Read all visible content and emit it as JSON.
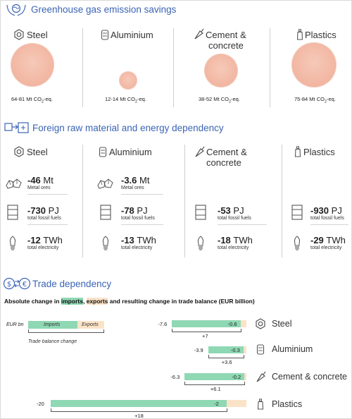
{
  "sections": {
    "ghg_title": "Greenhouse gas emission savings",
    "dependency_title": "Foreign raw material and energy dependency",
    "trade_title": "Trade dependency"
  },
  "materials": [
    "Steel",
    "Aluminium",
    "Cement & concrete",
    "Plastics"
  ],
  "materials_split": {
    "cement_line1": "Cement &",
    "cement_line2": "concrete"
  },
  "ghg": {
    "steel": {
      "range": "64-81",
      "value_max": 81
    },
    "aluminium": {
      "range": "12-14",
      "value_max": 14
    },
    "cement": {
      "range": "38-52",
      "value_max": 52
    },
    "plastics": {
      "range": "75-84",
      "value_max": 84
    },
    "unit_prefix": "Mt CO",
    "unit_sub": "2",
    "unit_suffix": "-eq."
  },
  "dependency": {
    "steel": {
      "ores_value": "-46",
      "ores_unit": "Mt",
      "ores_label": "Metal ores",
      "fossil_value": "-730",
      "fossil_unit": "PJ",
      "fossil_label": "total fossil fuels",
      "elec_value": "-12",
      "elec_unit": "TWh",
      "elec_label": "total electricity"
    },
    "aluminium": {
      "ores_value": "-3.6",
      "ores_unit": "Mt",
      "ores_label": "Metal ores",
      "fossil_value": "-78",
      "fossil_unit": "PJ",
      "fossil_label": "total fossil fuels",
      "elec_value": "-13",
      "elec_unit": "TWh",
      "elec_label": "total electricity"
    },
    "cement": {
      "fossil_value": "-53",
      "fossil_unit": "PJ",
      "fossil_label": "total fossil fuels",
      "elec_value": "-18",
      "elec_unit": "TWh",
      "elec_label": "total electricity"
    },
    "plastics": {
      "fossil_value": "-930",
      "fossil_unit": "PJ",
      "fossil_label": "total fossil fuels",
      "elec_value": "-29",
      "elec_unit": "TWh",
      "elec_label": "total electricity"
    }
  },
  "trade": {
    "heading_pre": "Absolute change in ",
    "heading_imports": "imports",
    "heading_comma": ", ",
    "heading_exports": "exports",
    "heading_post": " and resulting change in trade balance (EUR billion)",
    "legend_unit": "EUR bn",
    "legend_imports": "Imports",
    "legend_exports": "Exports",
    "legend_balance": "Trade balance change",
    "rows": [
      {
        "name": "Steel",
        "imports": "-7.6",
        "exports": "-0.6",
        "balance": "+7",
        "imp_val": 7.6,
        "exp_val": 0.6
      },
      {
        "name": "Aluminium",
        "imports": "-3.9",
        "exports": "-0.3",
        "balance": "+3.6",
        "imp_val": 3.9,
        "exp_val": 0.3
      },
      {
        "name": "Cement & concrete",
        "imports": "-6.3",
        "exports": "-0.2",
        "balance": "+6.1",
        "imp_val": 6.3,
        "exp_val": 0.2
      },
      {
        "name": "Plastics",
        "imports": "-20",
        "exports": "-2",
        "balance": "+18",
        "imp_val": 20,
        "exp_val": 2
      }
    ]
  },
  "colors": {
    "title_blue": "#3b64b6",
    "bubble": "#f2b8a4",
    "imports": "#8fd8b4",
    "exports": "#fbe3c8"
  }
}
